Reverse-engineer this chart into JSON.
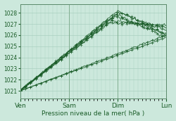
{
  "xlabel": "Pression niveau de la mer( hPa )",
  "ylim": [
    1020.3,
    1028.8
  ],
  "yticks": [
    1021,
    1022,
    1023,
    1024,
    1025,
    1026,
    1027,
    1028
  ],
  "day_labels": [
    "Ven",
    "Sam",
    "Dim",
    "Lun"
  ],
  "day_positions": [
    0,
    48,
    96,
    144
  ],
  "bg_color": "#cce8dc",
  "grid_color": "#aad0c0",
  "line_color": "#1a5c28",
  "n_steps": 145,
  "line_params": [
    [
      1021.0,
      96,
      1028.2,
      1026.0,
      0.03,
      0
    ],
    [
      1021.1,
      94,
      1027.9,
      1025.8,
      0.04,
      1
    ],
    [
      1021.0,
      93,
      1027.7,
      1026.1,
      0.04,
      2
    ],
    [
      1021.05,
      97,
      1028.05,
      1026.4,
      0.03,
      3
    ],
    [
      1021.0,
      90,
      1027.3,
      1026.7,
      0.03,
      5
    ],
    [
      1021.1,
      88,
      1027.1,
      1026.9,
      0.03,
      6
    ],
    [
      1021.0,
      144,
      1026.0,
      1026.0,
      0.02,
      4
    ],
    [
      1021.0,
      144,
      1025.8,
      1025.8,
      0.01,
      7
    ]
  ],
  "figsize": [
    2.5,
    1.72
  ],
  "dpi": 100
}
